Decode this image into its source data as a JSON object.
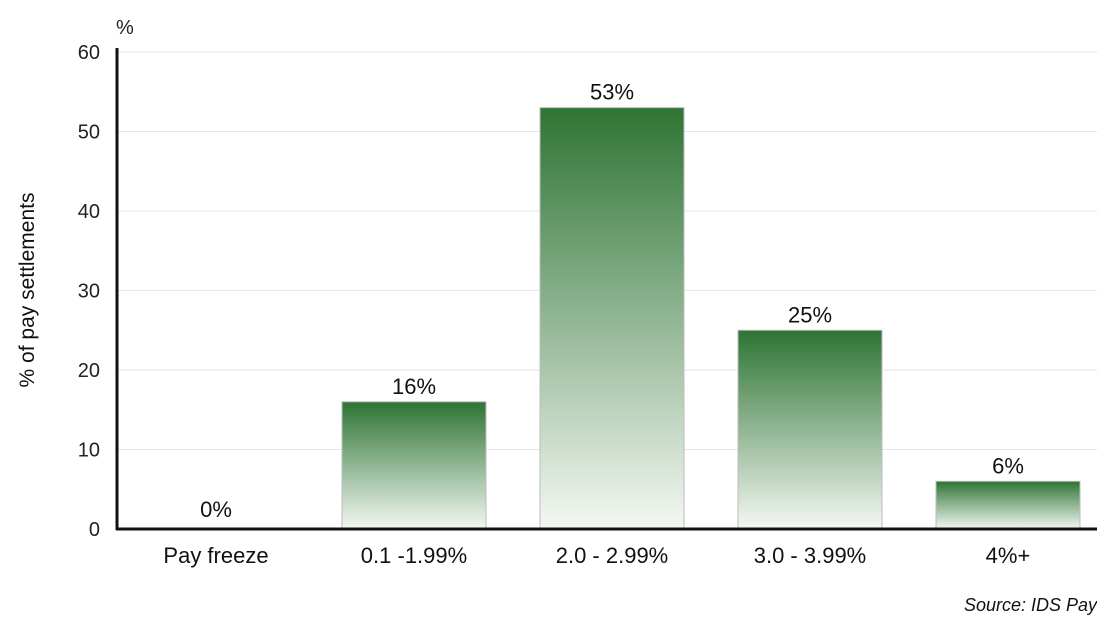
{
  "chart_data": {
    "type": "bar",
    "categories": [
      "Pay freeze",
      "0.1 -1.99%",
      "2.0 - 2.99%",
      "3.0 - 3.99%",
      "4%+"
    ],
    "values": [
      0,
      16,
      53,
      25,
      6
    ],
    "data_labels": [
      "0%",
      "16%",
      "53%",
      "25%",
      "6%"
    ],
    "ylabel": "% of pay settlements",
    "y_unit": "%",
    "ylim": [
      0,
      60
    ],
    "yticks": [
      0,
      10,
      20,
      30,
      40,
      50,
      60
    ],
    "grid": true,
    "bar_color_top": "#2e7434",
    "bar_color_bottom": "#f4f8f3",
    "source": "Source: IDS Pay"
  }
}
